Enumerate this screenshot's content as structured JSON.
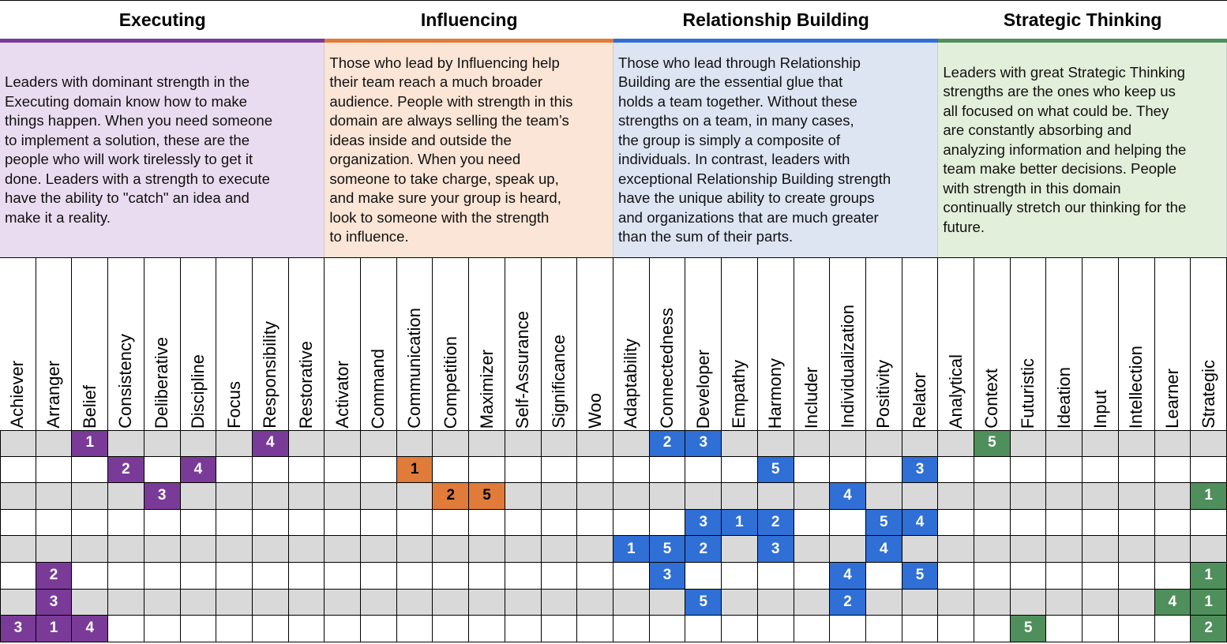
{
  "domains": [
    {
      "title": "Executing",
      "description": [
        "Leaders with dominant strength in the",
        "Executing domain know how to make",
        "things happen. When you need someone",
        "to implement a solution, these are the",
        "people who will work tirelessly to get it",
        "done. Leaders with a strength to execute",
        "have the ability to \"catch\" an idea and",
        "make it a reality."
      ],
      "strengths": [
        "Achiever",
        "Arranger",
        "Belief",
        "Consistency",
        "Deliberative",
        "Discipline",
        "Focus",
        "Responsibility",
        "Restorative"
      ]
    },
    {
      "title": "Influencing",
      "description": [
        "Those who lead by Influencing help",
        "their team reach a much broader",
        "audience. People with strength in this",
        "domain are always selling the team’s",
        "ideas inside and outside the",
        "organization. When you need",
        "someone to take charge, speak up,",
        "and make sure your group is heard,",
        "look to someone with the strength",
        "to influence."
      ],
      "strengths": [
        "Activator",
        "Command",
        "Communication",
        "Competition",
        "Maximizer",
        "Self-Assurance",
        "Significance",
        "Woo"
      ]
    },
    {
      "title": "Relationship Building",
      "description": [
        "Those who lead through Relationship",
        "Building are the essential glue that",
        "holds a team together. Without these",
        "strengths on a team, in many cases,",
        "the group is simply a composite of",
        "individuals. In contrast, leaders with",
        "exceptional Relationship Building strength",
        "have the unique ability to create groups",
        "and organizations that are much greater",
        "than the sum of their parts."
      ],
      "strengths": [
        "Adaptability",
        "Connectedness",
        "Developer",
        "Empathy",
        "Harmony",
        "Includer",
        "Individualization",
        "Positivity",
        "Relator"
      ]
    },
    {
      "title": "Strategic Thinking",
      "description": [
        "Leaders with great Strategic Thinking",
        "strengths are the ones who keep us",
        "all focused on what could be. They",
        "are constantly absorbing and",
        "analyzing information and helping the",
        "team make better decisions. People",
        "with strength in this domain",
        "continually stretch our thinking for the",
        "future."
      ],
      "strengths": [
        "Analytical",
        "Context",
        "Futuristic",
        "Ideation",
        "Input",
        "Intellection",
        "Learner",
        "Strategic"
      ]
    }
  ],
  "rows": [
    [
      null,
      null,
      1,
      null,
      null,
      null,
      null,
      4,
      null,
      null,
      null,
      null,
      null,
      null,
      null,
      null,
      null,
      null,
      2,
      3,
      null,
      null,
      null,
      null,
      null,
      null,
      null,
      5,
      null,
      null,
      null,
      null,
      null,
      null
    ],
    [
      null,
      null,
      null,
      2,
      null,
      4,
      null,
      null,
      null,
      null,
      null,
      1,
      null,
      null,
      null,
      null,
      null,
      null,
      null,
      null,
      null,
      5,
      null,
      null,
      null,
      3,
      null,
      null,
      null,
      null,
      null,
      null,
      null,
      null
    ],
    [
      null,
      null,
      null,
      null,
      3,
      null,
      null,
      null,
      null,
      null,
      null,
      null,
      2,
      5,
      null,
      null,
      null,
      null,
      null,
      null,
      null,
      null,
      null,
      4,
      null,
      null,
      null,
      null,
      null,
      null,
      null,
      null,
      null,
      1
    ],
    [
      null,
      null,
      null,
      null,
      null,
      null,
      null,
      null,
      null,
      null,
      null,
      null,
      null,
      null,
      null,
      null,
      null,
      null,
      null,
      3,
      1,
      2,
      null,
      null,
      5,
      4,
      null,
      null,
      null,
      null,
      null,
      null,
      null,
      null
    ],
    [
      null,
      null,
      null,
      null,
      null,
      null,
      null,
      null,
      null,
      null,
      null,
      null,
      null,
      null,
      null,
      null,
      null,
      1,
      5,
      2,
      null,
      3,
      null,
      null,
      4,
      null,
      null,
      null,
      null,
      null,
      null,
      null,
      null,
      null
    ],
    [
      null,
      2,
      null,
      null,
      null,
      null,
      null,
      null,
      null,
      null,
      null,
      null,
      null,
      null,
      null,
      null,
      null,
      null,
      3,
      null,
      null,
      null,
      null,
      4,
      null,
      5,
      null,
      null,
      null,
      null,
      null,
      null,
      null,
      1
    ],
    [
      null,
      3,
      null,
      null,
      null,
      null,
      null,
      null,
      null,
      null,
      null,
      null,
      null,
      null,
      null,
      null,
      null,
      null,
      null,
      5,
      null,
      null,
      null,
      2,
      null,
      null,
      null,
      null,
      null,
      null,
      null,
      null,
      4,
      1
    ],
    [
      3,
      1,
      4,
      null,
      null,
      null,
      null,
      null,
      null,
      null,
      null,
      null,
      null,
      null,
      null,
      null,
      null,
      null,
      null,
      null,
      null,
      null,
      null,
      null,
      null,
      null,
      null,
      null,
      5,
      null,
      null,
      null,
      null,
      2
    ]
  ]
}
